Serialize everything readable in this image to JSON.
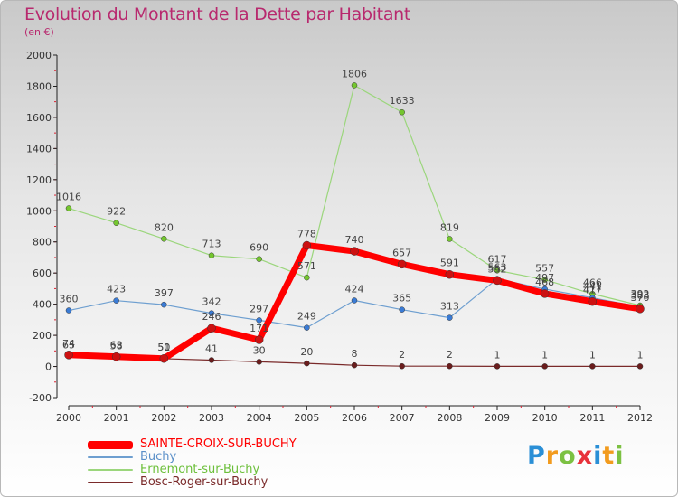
{
  "chart_data": {
    "type": "line",
    "title": "Evolution du Montant de la Dette par Habitant",
    "subtitle": "(en €)",
    "xlabel": "",
    "ylabel": "",
    "categories": [
      "2000",
      "2001",
      "2002",
      "2003",
      "2004",
      "2005",
      "2006",
      "2007",
      "2008",
      "2009",
      "2010",
      "2011",
      "2012"
    ],
    "ylim": [
      -200,
      2000
    ],
    "yticks": [
      "-200",
      "0",
      "200",
      "400",
      "600",
      "800",
      "1000",
      "1200",
      "1400",
      "1600",
      "1800",
      "2000"
    ],
    "grid": false,
    "legend_position": "bottom-left",
    "series": [
      {
        "name": "SAINTE-CROIX-SUR-BUCHY",
        "color": "#ff0000",
        "marker_color": "#cc1111",
        "values": [
          74,
          63,
          51,
          246,
          171,
          778,
          740,
          657,
          591,
          552,
          468,
          417,
          370
        ],
        "labels": [
          "74",
          "63",
          "51",
          "246",
          "171",
          "778",
          "740",
          "657",
          "591",
          "552",
          "468",
          "417",
          "370"
        ]
      },
      {
        "name": "Buchy",
        "color": "#6e9fd0",
        "marker_color": "#3a7bd5",
        "values": [
          360,
          423,
          397,
          342,
          297,
          249,
          424,
          365,
          313,
          563,
          497,
          441,
          383
        ],
        "labels": [
          "360",
          "423",
          "397",
          "342",
          "297",
          "249",
          "424",
          "365",
          "313",
          "563",
          "497",
          "441",
          "383"
        ]
      },
      {
        "name": "Ernemont-sur-Buchy",
        "color": "#9bd67c",
        "marker_color": "#74c62e",
        "values": [
          1016,
          922,
          820,
          713,
          690,
          571,
          1806,
          1633,
          819,
          617,
          557,
          466,
          392
        ],
        "labels": [
          "1016",
          "922",
          "820",
          "713",
          "690",
          "571",
          "1806",
          "1633",
          "819",
          "617",
          "557",
          "466",
          "392"
        ]
      },
      {
        "name": "Bosc-Roger-sur-Buchy",
        "color": "#7a2a2a",
        "marker_color": "#6a1d1d",
        "values": [
          65,
          58,
          50,
          41,
          30,
          20,
          8,
          2,
          2,
          1,
          1,
          1,
          1
        ],
        "labels": [
          "65",
          "58",
          "50",
          "41",
          "30",
          "20",
          "8",
          "2",
          "2",
          "1",
          "1",
          "1",
          "1"
        ]
      }
    ]
  },
  "logo": {
    "letters": [
      "P",
      "r",
      "o",
      "x",
      "i",
      "t",
      "i"
    ],
    "colors": [
      "#2a8fd6",
      "#f29b1e",
      "#7cc142",
      "#e8313a",
      "#2a8fd6",
      "#f29b1e",
      "#7cc142"
    ]
  }
}
